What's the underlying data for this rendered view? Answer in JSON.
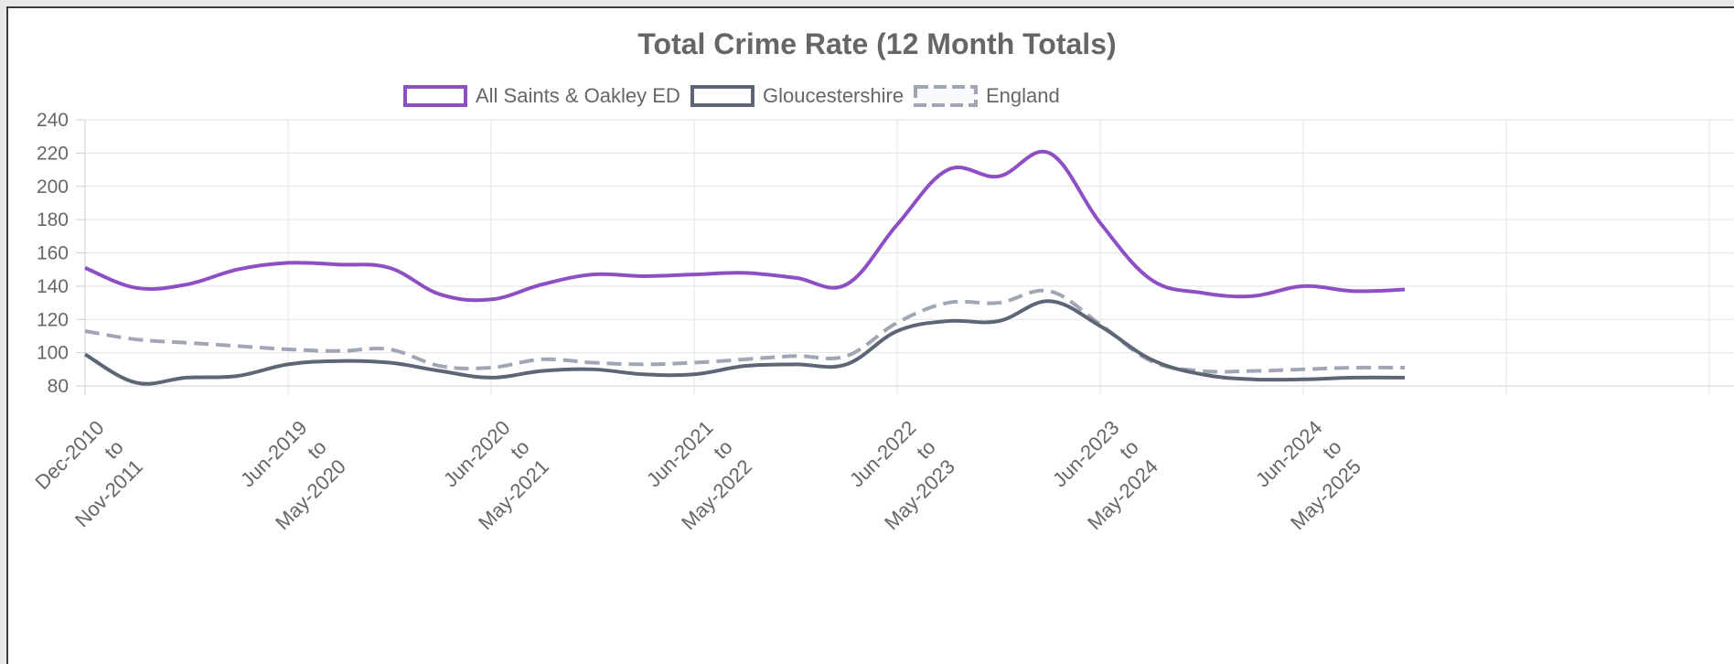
{
  "chart_data": {
    "type": "line",
    "title": "Total Crime Rate (12 Month Totals)",
    "xlabel": "",
    "ylabel": "",
    "ylim": [
      80,
      240
    ],
    "yticks": [
      80,
      100,
      120,
      140,
      160,
      180,
      200,
      220,
      240
    ],
    "grid": true,
    "legend_position": "top",
    "x_tick_labels": [
      {
        "line1": "Dec-2010",
        "line2": "to",
        "line3": "Nov-2011"
      },
      {
        "line1": "Jun-2019",
        "line2": "to",
        "line3": "May-2020"
      },
      {
        "line1": "Jun-2020",
        "line2": "to",
        "line3": "May-2021"
      },
      {
        "line1": "Jun-2021",
        "line2": "to",
        "line3": "May-2022"
      },
      {
        "line1": "Jun-2022",
        "line2": "to",
        "line3": "May-2023"
      },
      {
        "line1": "Jun-2023",
        "line2": "to",
        "line3": "May-2024"
      },
      {
        "line1": "Jun-2024",
        "line2": "to",
        "line3": "May-2025"
      }
    ],
    "x_tick_positions": [
      0,
      4,
      8,
      12,
      16,
      20,
      24
    ],
    "x_range": [
      0,
      26
    ],
    "series": [
      {
        "name": "All Saints & Oakley ED",
        "color": "#8e4fc4",
        "dash": false,
        "x": [
          0,
          1,
          2,
          3,
          4,
          5,
          6,
          7,
          8,
          9,
          10,
          11,
          12,
          13,
          14,
          15,
          16,
          17,
          18,
          19,
          20,
          21,
          22,
          23,
          24,
          25,
          26
        ],
        "values": [
          151,
          139,
          141,
          150,
          154,
          153,
          151,
          135,
          132,
          141,
          147,
          146,
          147,
          148,
          145,
          141,
          177,
          210,
          206,
          220,
          178,
          144,
          136,
          134,
          140,
          137,
          138
        ]
      },
      {
        "name": "Gloucestershire",
        "color": "#5d6677",
        "dash": false,
        "x": [
          0,
          1,
          2,
          3,
          4,
          5,
          6,
          7,
          8,
          9,
          10,
          11,
          12,
          13,
          14,
          15,
          16,
          17,
          18,
          19,
          20,
          21,
          22,
          23,
          24,
          25,
          26
        ],
        "values": [
          99,
          82,
          85,
          86,
          93,
          95,
          94,
          89,
          85,
          89,
          90,
          87,
          87,
          92,
          93,
          93,
          113,
          119,
          119,
          131,
          116,
          96,
          87,
          84,
          84,
          85,
          85
        ]
      },
      {
        "name": "England",
        "color": "#a0a6b4",
        "dash": true,
        "x": [
          0,
          1,
          2,
          3,
          4,
          5,
          6,
          7,
          8,
          9,
          10,
          11,
          12,
          13,
          14,
          15,
          16,
          17,
          18,
          19,
          20,
          21,
          22,
          23,
          24,
          25,
          26
        ],
        "values": [
          113,
          108,
          106,
          104,
          102,
          101,
          102,
          92,
          91,
          96,
          94,
          93,
          94,
          96,
          98,
          98,
          118,
          130,
          130,
          137,
          117,
          95,
          89,
          89,
          90,
          91,
          91
        ]
      }
    ]
  }
}
